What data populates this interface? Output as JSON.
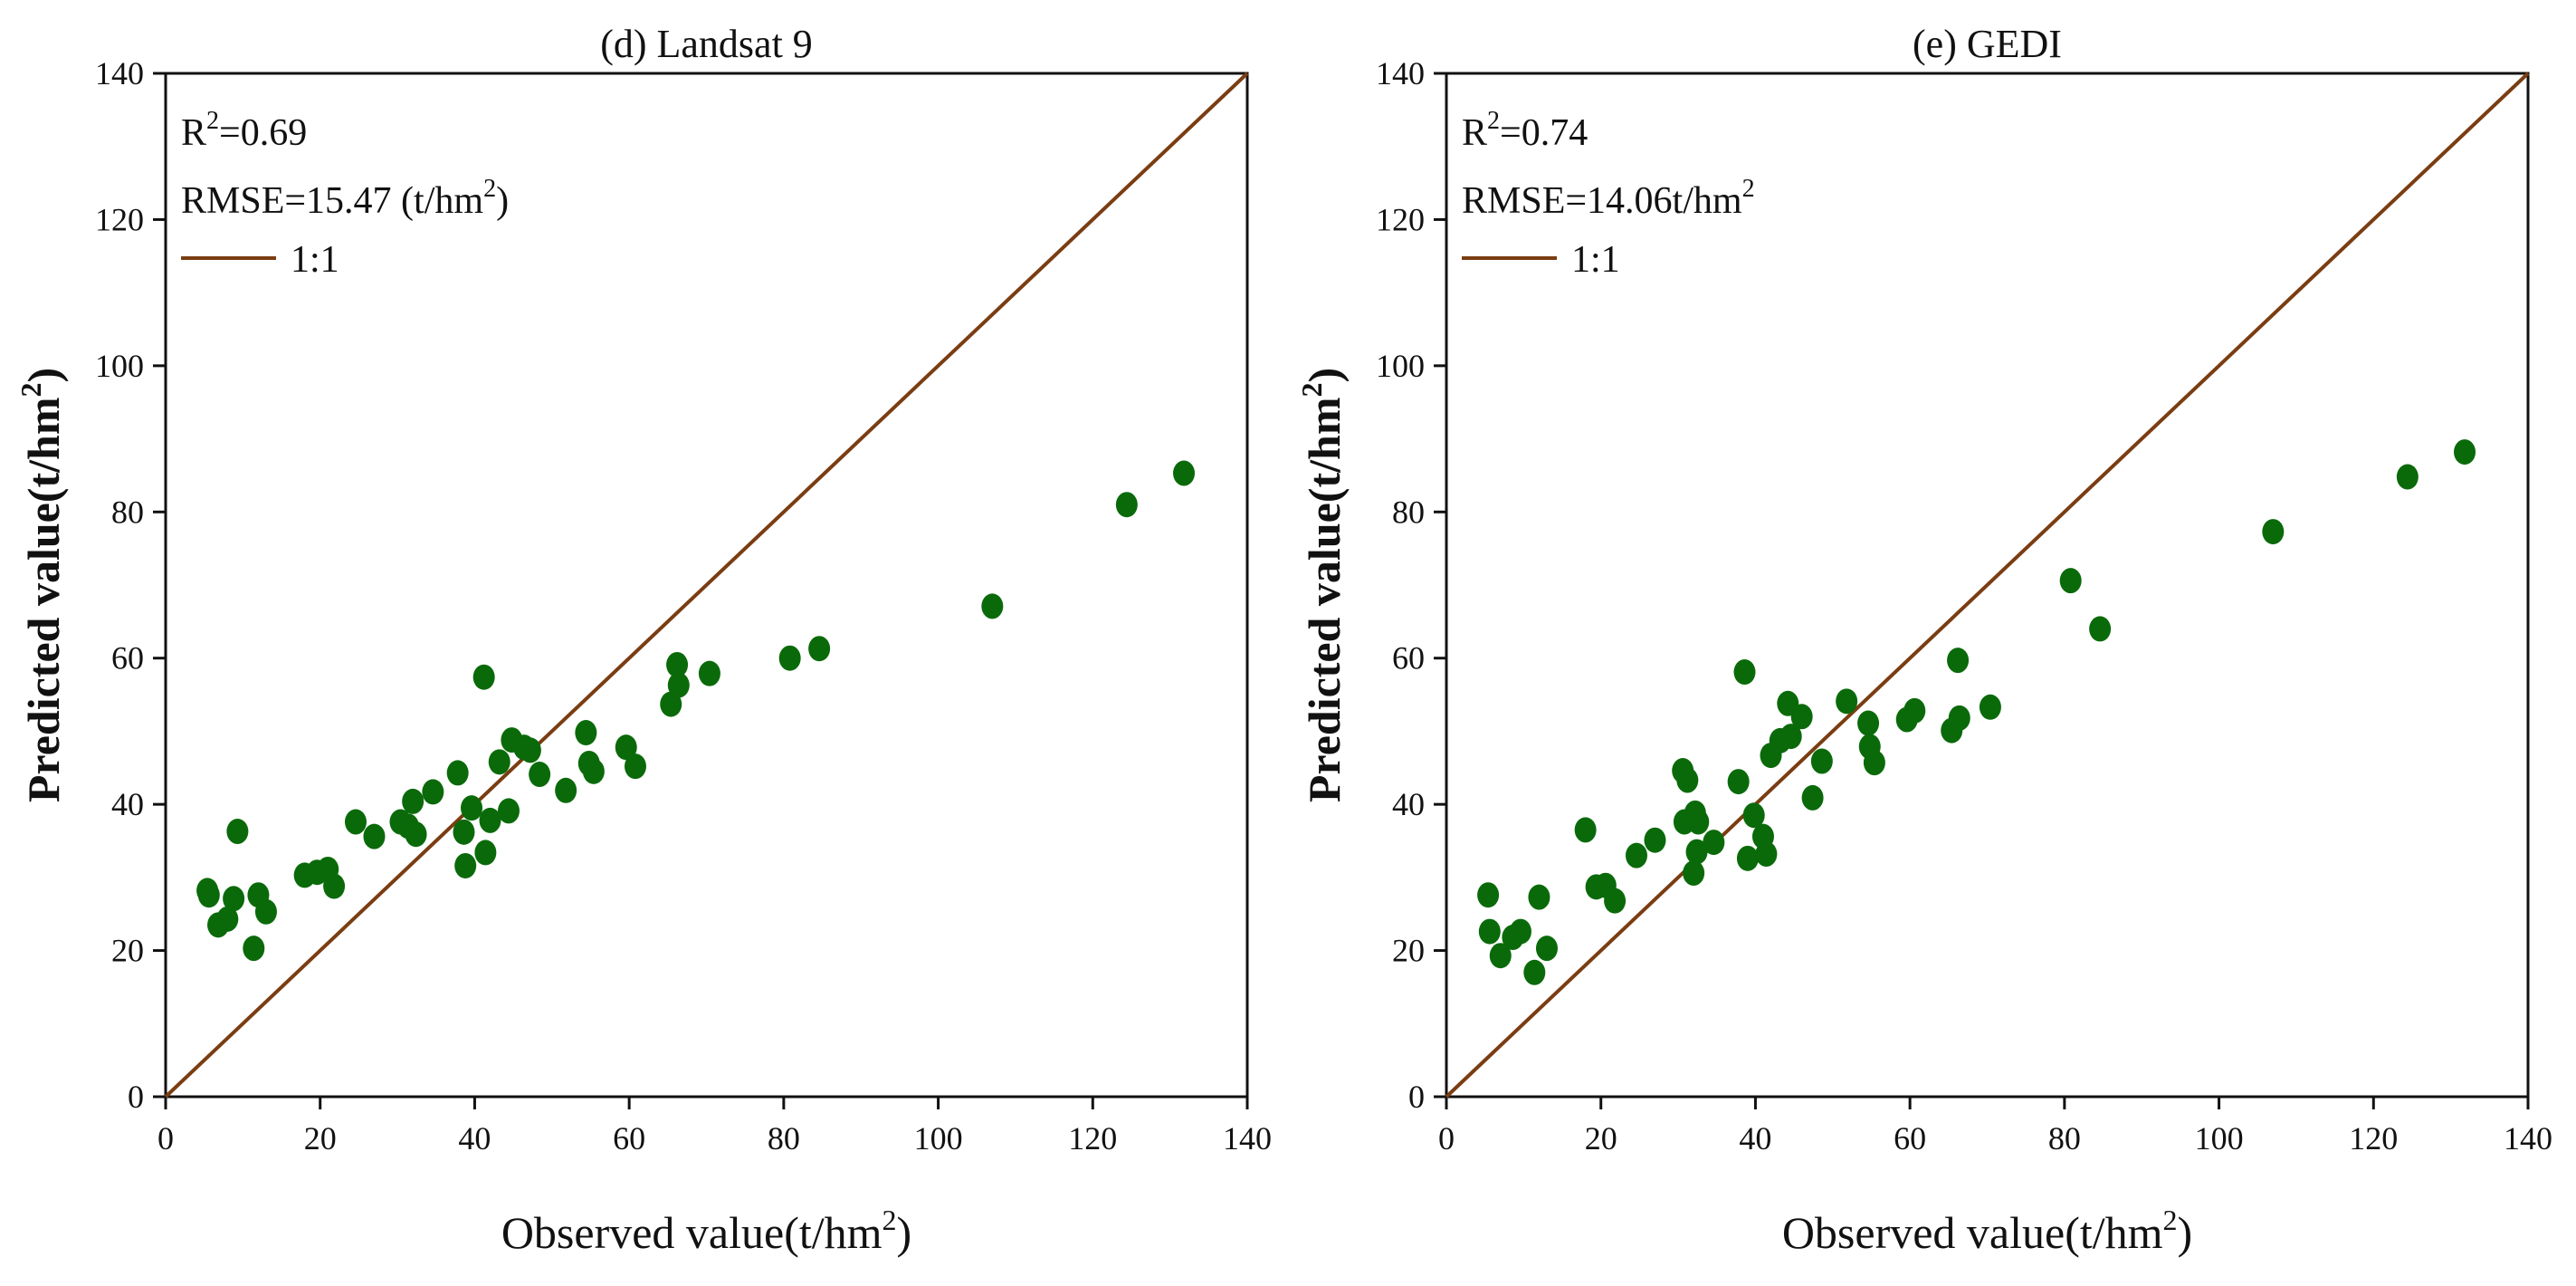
{
  "chart_data": [
    {
      "type": "scatter",
      "title": "(d) Landsat 9",
      "xlabel": "Observed value(t/hm",
      "ylabel": "Predicted value(t/hm",
      "label_superscript": "2",
      "xlim": [
        0,
        140
      ],
      "ylim": [
        0,
        140
      ],
      "xticks": [
        "0",
        "20",
        "40",
        "60",
        "80",
        "100",
        "120",
        "140"
      ],
      "yticks": [
        "0",
        "20",
        "40",
        "60",
        "80",
        "100",
        "120",
        "140"
      ],
      "stats": {
        "r2_prefix": "R",
        "r2_sup": "2",
        "r2_value": "=0.69",
        "rmse_text": "RMSE=15.47 (t/hm",
        "rmse_sup": "2",
        "rmse_tail": ")"
      },
      "legend": {
        "label": "1:1",
        "placement": "top-left"
      },
      "line": {
        "name": "1:1",
        "x": [
          0,
          140
        ],
        "y": [
          0,
          140
        ],
        "color": "#7a3d12"
      },
      "marker_color": "#0a6a0a",
      "points": [
        {
          "x": 5.4,
          "y": 28.2
        },
        {
          "x": 5.6,
          "y": 27.6
        },
        {
          "x": 6.8,
          "y": 23.5
        },
        {
          "x": 8.0,
          "y": 24.3
        },
        {
          "x": 8.8,
          "y": 27.1
        },
        {
          "x": 9.3,
          "y": 36.3
        },
        {
          "x": 11.4,
          "y": 20.3
        },
        {
          "x": 12.0,
          "y": 27.6
        },
        {
          "x": 13.0,
          "y": 25.3
        },
        {
          "x": 18.0,
          "y": 30.3
        },
        {
          "x": 19.6,
          "y": 30.7
        },
        {
          "x": 21.0,
          "y": 31.1
        },
        {
          "x": 21.8,
          "y": 28.8
        },
        {
          "x": 24.6,
          "y": 37.6
        },
        {
          "x": 27.0,
          "y": 35.6
        },
        {
          "x": 30.4,
          "y": 37.6
        },
        {
          "x": 31.4,
          "y": 37.0
        },
        {
          "x": 32.0,
          "y": 40.4
        },
        {
          "x": 32.4,
          "y": 35.9
        },
        {
          "x": 34.6,
          "y": 41.7
        },
        {
          "x": 37.8,
          "y": 44.3
        },
        {
          "x": 38.6,
          "y": 36.2
        },
        {
          "x": 38.8,
          "y": 31.6
        },
        {
          "x": 39.6,
          "y": 39.5
        },
        {
          "x": 41.2,
          "y": 57.4
        },
        {
          "x": 41.4,
          "y": 33.4
        },
        {
          "x": 42.0,
          "y": 37.8
        },
        {
          "x": 43.2,
          "y": 45.8
        },
        {
          "x": 44.4,
          "y": 39.1
        },
        {
          "x": 44.8,
          "y": 48.8
        },
        {
          "x": 46.4,
          "y": 47.8
        },
        {
          "x": 47.2,
          "y": 47.4
        },
        {
          "x": 48.4,
          "y": 44.1
        },
        {
          "x": 51.8,
          "y": 41.9
        },
        {
          "x": 54.4,
          "y": 49.8
        },
        {
          "x": 54.8,
          "y": 45.6
        },
        {
          "x": 55.4,
          "y": 44.5
        },
        {
          "x": 59.6,
          "y": 47.8
        },
        {
          "x": 60.8,
          "y": 45.2
        },
        {
          "x": 65.4,
          "y": 53.7
        },
        {
          "x": 66.2,
          "y": 59.1
        },
        {
          "x": 66.4,
          "y": 56.3
        },
        {
          "x": 70.4,
          "y": 57.9
        },
        {
          "x": 80.8,
          "y": 60.0
        },
        {
          "x": 84.6,
          "y": 61.3
        },
        {
          "x": 107.0,
          "y": 67.1
        },
        {
          "x": 124.4,
          "y": 81.0
        },
        {
          "x": 131.8,
          "y": 85.3
        }
      ]
    },
    {
      "type": "scatter",
      "title": "(e) GEDI",
      "xlabel": "Observed value(t/hm",
      "ylabel": "Predicted value(t/hm",
      "label_superscript": "2",
      "xlim": [
        0,
        140
      ],
      "ylim": [
        0,
        140
      ],
      "xticks": [
        "0",
        "20",
        "40",
        "60",
        "80",
        "100",
        "120",
        "140"
      ],
      "yticks": [
        "0",
        "20",
        "40",
        "60",
        "80",
        "100",
        "120",
        "140"
      ],
      "stats": {
        "r2_prefix": "R",
        "r2_sup": "2",
        "r2_value": "=0.74",
        "rmse_text": "RMSE=14.06t/hm",
        "rmse_sup": "2",
        "rmse_tail": ""
      },
      "legend": {
        "label": "1:1",
        "placement": "top-left"
      },
      "line": {
        "name": "1:1",
        "x": [
          0,
          140
        ],
        "y": [
          0,
          140
        ],
        "color": "#7a3d12"
      },
      "marker_color": "#0a6a0a",
      "points": [
        {
          "x": 5.4,
          "y": 27.6
        },
        {
          "x": 5.6,
          "y": 22.6
        },
        {
          "x": 7.0,
          "y": 19.3
        },
        {
          "x": 8.6,
          "y": 21.8
        },
        {
          "x": 9.6,
          "y": 22.6
        },
        {
          "x": 11.4,
          "y": 17.0
        },
        {
          "x": 12.0,
          "y": 27.3
        },
        {
          "x": 13.0,
          "y": 20.3
        },
        {
          "x": 18.0,
          "y": 36.5
        },
        {
          "x": 19.4,
          "y": 28.7
        },
        {
          "x": 20.6,
          "y": 28.9
        },
        {
          "x": 21.8,
          "y": 26.8
        },
        {
          "x": 24.6,
          "y": 33.0
        },
        {
          "x": 27.0,
          "y": 35.1
        },
        {
          "x": 30.6,
          "y": 44.6
        },
        {
          "x": 30.8,
          "y": 37.6
        },
        {
          "x": 31.2,
          "y": 43.3
        },
        {
          "x": 32.0,
          "y": 30.6
        },
        {
          "x": 32.2,
          "y": 38.8
        },
        {
          "x": 32.4,
          "y": 33.5
        },
        {
          "x": 32.6,
          "y": 37.6
        },
        {
          "x": 34.6,
          "y": 34.8
        },
        {
          "x": 37.8,
          "y": 43.1
        },
        {
          "x": 38.6,
          "y": 58.1
        },
        {
          "x": 39.0,
          "y": 32.6
        },
        {
          "x": 39.8,
          "y": 38.5
        },
        {
          "x": 41.0,
          "y": 35.6
        },
        {
          "x": 41.4,
          "y": 33.2
        },
        {
          "x": 42.0,
          "y": 46.7
        },
        {
          "x": 43.2,
          "y": 48.7
        },
        {
          "x": 44.2,
          "y": 53.8
        },
        {
          "x": 44.6,
          "y": 49.3
        },
        {
          "x": 46.0,
          "y": 52.0
        },
        {
          "x": 47.4,
          "y": 40.9
        },
        {
          "x": 48.6,
          "y": 45.9
        },
        {
          "x": 51.8,
          "y": 54.1
        },
        {
          "x": 54.6,
          "y": 51.1
        },
        {
          "x": 54.8,
          "y": 47.9
        },
        {
          "x": 55.4,
          "y": 45.7
        },
        {
          "x": 59.6,
          "y": 51.6
        },
        {
          "x": 60.6,
          "y": 52.8
        },
        {
          "x": 65.4,
          "y": 50.1
        },
        {
          "x": 66.2,
          "y": 59.7
        },
        {
          "x": 66.4,
          "y": 51.8
        },
        {
          "x": 70.4,
          "y": 53.3
        },
        {
          "x": 80.8,
          "y": 70.6
        },
        {
          "x": 84.6,
          "y": 64.0
        },
        {
          "x": 107.0,
          "y": 77.3
        },
        {
          "x": 124.4,
          "y": 84.8
        },
        {
          "x": 131.8,
          "y": 88.2
        }
      ]
    }
  ]
}
